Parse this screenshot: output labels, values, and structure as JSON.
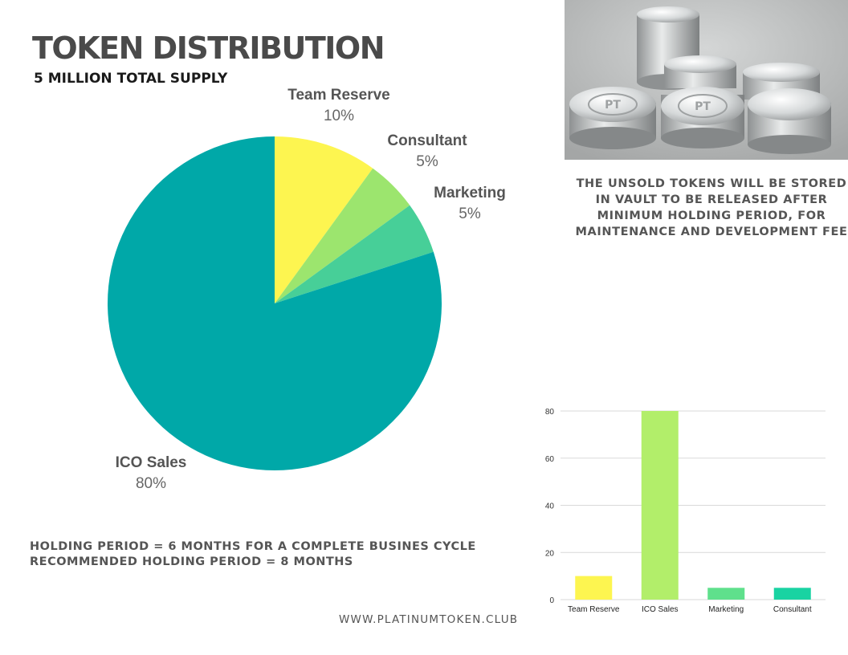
{
  "header": {
    "title": "TOKEN DISTRIBUTION",
    "subtitle": "5  MILLION TOTAL SUPPLY"
  },
  "note": "THE UNSOLD TOKENS WILL BE STORED IN VAULT TO BE RELEASED AFTER MINIMUM HOLDING PERIOD, FOR MAINTENANCE AND DEVELOPMENT FEE",
  "holding": {
    "line1": "HOLDING PERIOD = 6 MONTHS FOR A COMPLETE BUSINES CYCLE",
    "line2": "RECOMMENDED HOLDING PERIOD = 8 MONTHS"
  },
  "website": "WWW.PLATINUMTOKEN.CLUB",
  "photo": {
    "coin_text": "PT"
  },
  "chart_data": [
    {
      "type": "pie",
      "slices": [
        {
          "label": "Team Reserve",
          "value": 10,
          "display": "10%",
          "color": "#fdf550"
        },
        {
          "label": "Consultant",
          "value": 5,
          "display": "5%",
          "color": "#9ce56e"
        },
        {
          "label": "Marketing",
          "value": 5,
          "display": "5%",
          "color": "#47cf98"
        },
        {
          "label": "ICO Sales",
          "value": 80,
          "display": "80%",
          "color": "#00a8a8"
        }
      ]
    },
    {
      "type": "bar",
      "categories": [
        "Team Reserve",
        "ICO Sales",
        "Marketing",
        "Consultant"
      ],
      "values": [
        10,
        80,
        5,
        5
      ],
      "colors": [
        "#fdf550",
        "#b2ee6a",
        "#5fe08c",
        "#19d3a2"
      ],
      "ylim": [
        0,
        80
      ],
      "yticks": [
        0,
        20,
        40,
        60,
        80
      ],
      "grid": true
    }
  ]
}
